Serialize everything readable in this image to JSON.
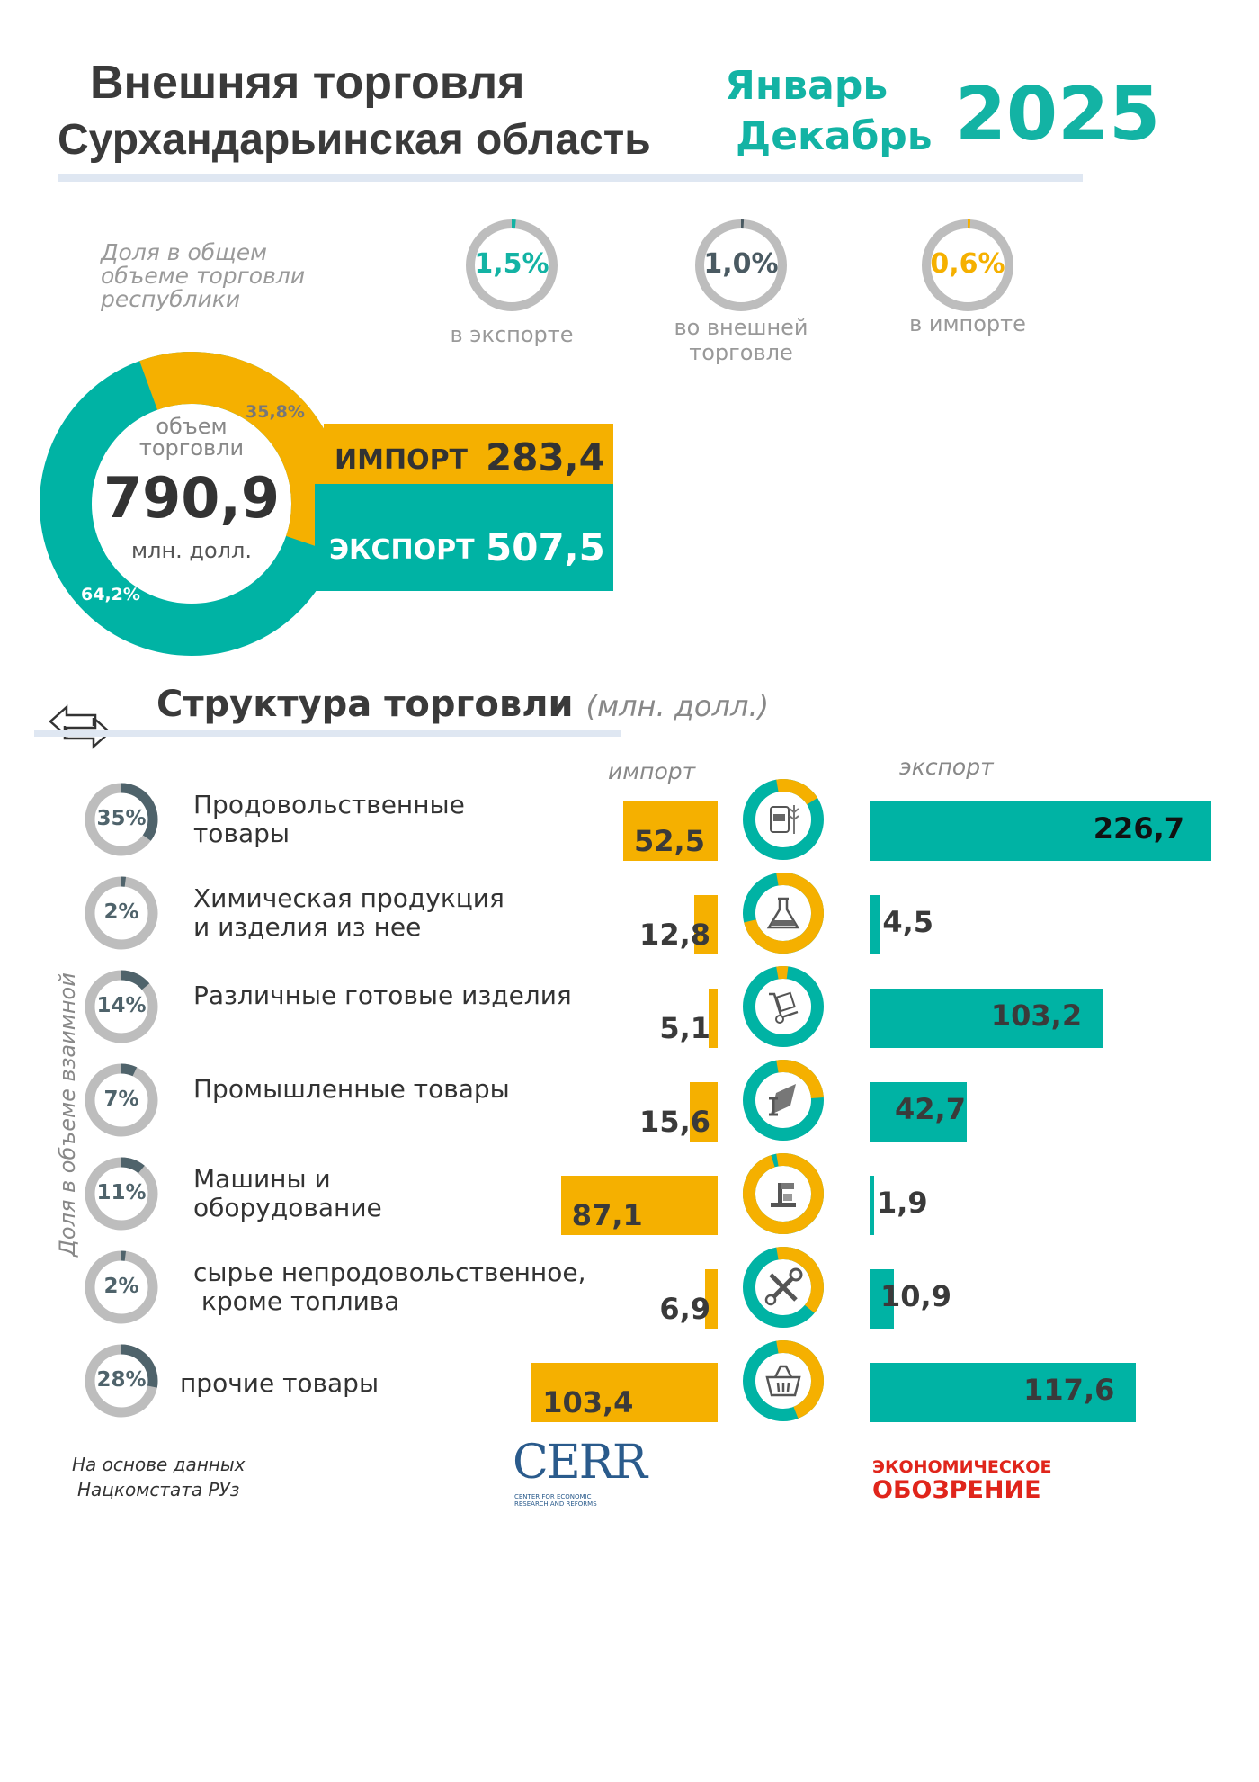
{
  "header": {
    "title_line1": "Внешняя торговля",
    "title_line2": "Сурхандарьинская область",
    "period_from": "Январь",
    "period_to": "Декабрь",
    "year": "2025"
  },
  "shares": {
    "caption": "Доля в общем объеме торговли республики",
    "items": [
      {
        "value": "1,5%",
        "label": "в экспорте",
        "pct": 1.5,
        "color": "#13b3a4"
      },
      {
        "value": "1,0%",
        "label": "во внешней торговле",
        "pct": 1.0,
        "color": "#4a5a62"
      },
      {
        "value": "0,6%",
        "label": "в импорте",
        "pct": 0.6,
        "color": "#f5b000"
      }
    ]
  },
  "total": {
    "caption": "объем торговли",
    "value": "790,9",
    "unit": "млн. долл.",
    "import_label": "ИМПОРТ",
    "import_value": "283,4",
    "export_label": "ЭКСПОРТ",
    "export_value": "507,5",
    "import_pct_label": "35,8%",
    "export_pct_label": "64,2%",
    "import_pct": 35.8,
    "export_pct": 64.2
  },
  "structure": {
    "title": "Структура торговли",
    "unit": "(млн. долл.)",
    "import_header": "импорт",
    "export_header": "экспорт",
    "side_label": "Доля в объеме взаимной"
  },
  "colors": {
    "import": "#f5b000",
    "export": "#00b3a4",
    "share": "#4f636b",
    "track": "#bdbdbd"
  },
  "chart_data": {
    "type": "bar",
    "title": "Структура торговли (млн. долл.)",
    "categories": [
      "Продовольственные\nтовары",
      "Химическая продукция\nи изделия из нее",
      "Различные готовые изделия",
      "Промышленные товары",
      "Машины и\nоборудование",
      "сырье непродовольственное,\n кроме топлива",
      "прочие товары"
    ],
    "share_labels": [
      "35%",
      "2%",
      "14%",
      "7%",
      "11%",
      "2%",
      "28%"
    ],
    "share_values": [
      35,
      2,
      14,
      7,
      11,
      2,
      28
    ],
    "icons": [
      "food-icon",
      "flask-icon",
      "hand-truck-icon",
      "steel-beam-icon",
      "machine-icon",
      "tools-icon",
      "basket-icon"
    ],
    "series": [
      {
        "name": "импорт",
        "values": [
          52.5,
          12.8,
          5.1,
          15.6,
          87.1,
          6.9,
          103.4
        ],
        "labels": [
          "52,5",
          "12,8",
          "5,1",
          "15,6",
          "87,1",
          "6,9",
          "103,4"
        ]
      },
      {
        "name": "экспорт",
        "values": [
          226.7,
          4.5,
          103.2,
          42.7,
          1.9,
          10.9,
          117.6
        ],
        "labels": [
          "226,7",
          "4,5",
          "103,2",
          "42,7",
          "1,9",
          "10,9",
          "117,6"
        ]
      }
    ]
  },
  "footer": {
    "source_line1": "На основе данных",
    "source_line2": "Нацкомстата РУз",
    "logo1": "CERR",
    "logo1_sub": "CENTER FOR ECONOMIC RESEARCH AND REFORMS",
    "logo2_line1": "ЭКОНОМИЧЕСКОЕ",
    "logo2_line2": "ОБОЗРЕНИЕ"
  }
}
